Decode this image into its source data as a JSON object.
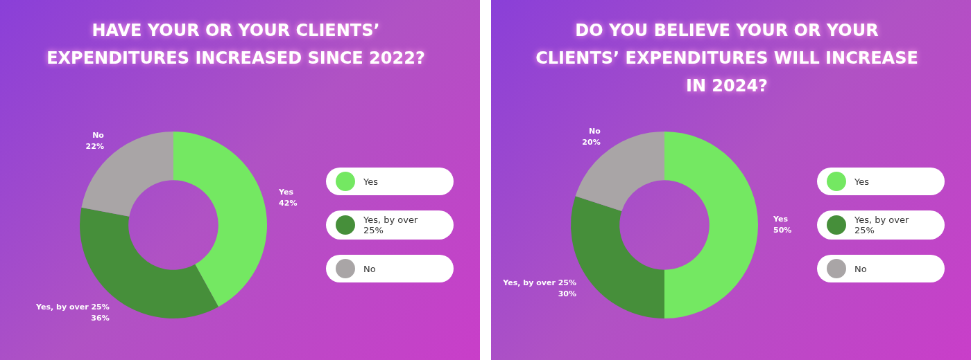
{
  "chart_data": [
    {
      "type": "donut",
      "title": "HAVE YOUR OR YOUR CLIENTS’ EXPENDITURES INCREASED SINCE 2022?",
      "categories": [
        "Yes",
        "Yes, by over 25%",
        "No"
      ],
      "values": [
        42,
        36,
        22
      ],
      "value_labels": [
        "42%",
        "36%",
        "22%"
      ],
      "colors": [
        "#74e862",
        "#468f3a",
        "#a9a5a6"
      ],
      "legend": "right"
    },
    {
      "type": "donut",
      "title": "DO YOU BELIEVE YOUR OR YOUR CLIENTS’ EXPENDITURES WILL INCREASE IN 2024?",
      "categories": [
        "Yes",
        "Yes, by over 25%",
        "No"
      ],
      "values": [
        50,
        30,
        20
      ],
      "value_labels": [
        "50%",
        "30%",
        "20%"
      ],
      "colors": [
        "#74e862",
        "#468f3a",
        "#a9a5a6"
      ],
      "legend": "right"
    }
  ]
}
